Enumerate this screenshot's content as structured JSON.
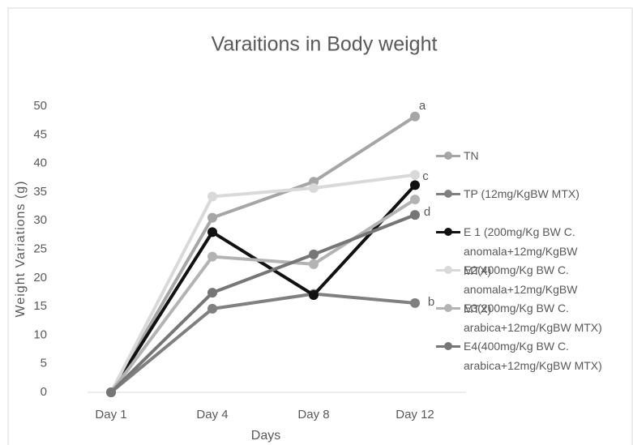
{
  "chart_data": {
    "type": "line",
    "title": "Varaitions in Body weight",
    "x_label": "Days",
    "y_label": "Weight Variations (g)",
    "categories": [
      "Day 1",
      "Day 4",
      "Day 8",
      "Day 12"
    ],
    "series": [
      {
        "name": "TN",
        "color": "#a6a6a6",
        "values": [
          0,
          30.5,
          36.8,
          48.2
        ]
      },
      {
        "name": "TP (12mg/KgBW MTX)",
        "color": "#808080",
        "values": [
          0,
          14.6,
          17.2,
          15.6
        ]
      },
      {
        "name": "E 1 (200mg/Kg BW C. anomala+12mg/KgBW MTX)",
        "color": "#111111",
        "values": [
          0,
          28,
          17,
          36.2
        ]
      },
      {
        "name": "E2(400mg/Kg BW C. anomala+12mg/KgBW MTX)",
        "color": "#d9d9d9",
        "values": [
          0,
          34.2,
          35.7,
          38
        ]
      },
      {
        "name": "E3(200mg/Kg BW C. arabica+12mg/KgBW MTX)",
        "color": "#b3b3b3",
        "values": [
          0,
          23.7,
          22.4,
          33.7
        ]
      },
      {
        "name": "E4(400mg/Kg BW C. arabica+12mg/KgBW MTX)",
        "color": "#767676",
        "values": [
          0,
          17.4,
          24.1,
          31
        ]
      }
    ],
    "annotations": [
      "a",
      "c",
      "d",
      "b"
    ],
    "ylim": [
      0,
      50
    ],
    "yticks": [
      0,
      5,
      10,
      15,
      20,
      25,
      30,
      35,
      40,
      45,
      50
    ],
    "grid": false,
    "legend": "right"
  }
}
